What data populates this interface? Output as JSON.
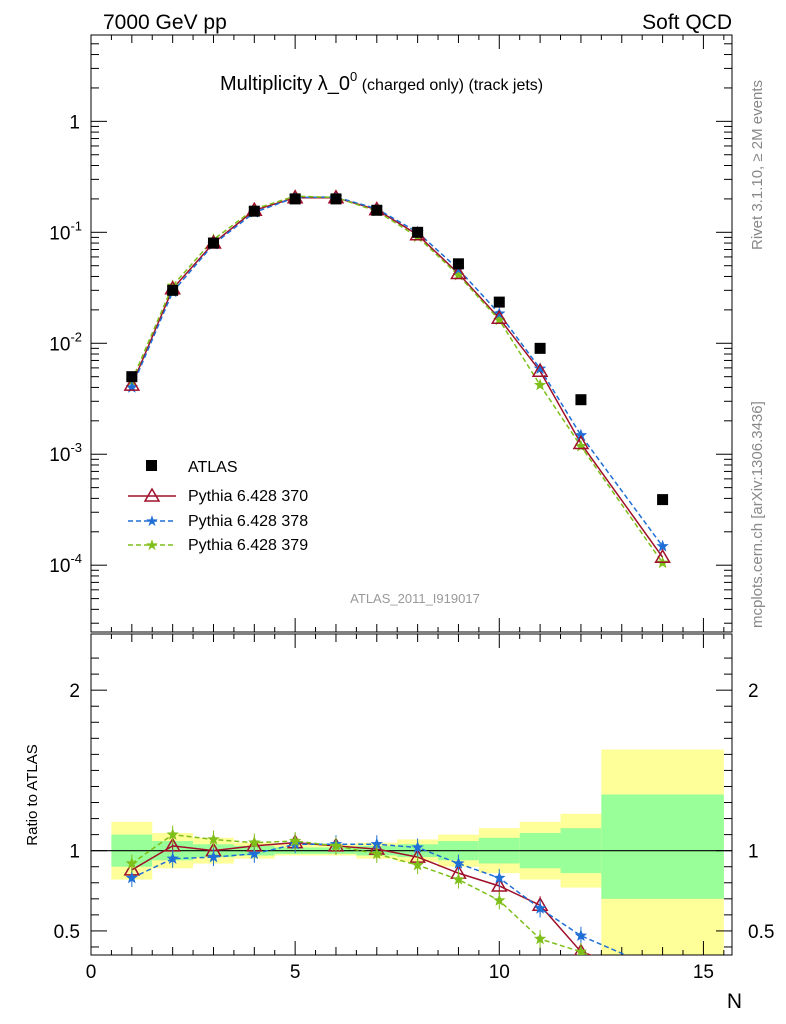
{
  "header": {
    "left": "7000 GeV pp",
    "right": "Soft QCD",
    "title_main": "Multiplicity λ_0",
    "title_sup": "0",
    "title_sub": " (charged only) (track jets)",
    "analysis": "ATLAS_2011_I919017",
    "side_top": "Rivet 3.1.10, ≥ 2M events",
    "side_bottom": "mcplots.cern.ch [arXiv:1306.3436]"
  },
  "colors": {
    "atlas": "#000000",
    "p370": "#a0102a",
    "p378": "#1f6fd6",
    "p379": "#7fbf1a",
    "band_inner": "#99ff99",
    "band_outer": "#ffff99"
  },
  "chart_data": [
    {
      "type": "scatter",
      "panel": "main",
      "yscale": "log",
      "xlim": [
        0,
        15.7
      ],
      "ylim": [
        2.5e-05,
        6
      ],
      "xlabel": "N",
      "ytick_labels": [
        "10^-4",
        "10^-3",
        "10^-2",
        "10^-1",
        "1"
      ],
      "xtick_labels": [
        "0",
        "5",
        "10",
        "15"
      ],
      "legend_position": "lower-left",
      "x": [
        1,
        2,
        3,
        4,
        5,
        6,
        7,
        8,
        9,
        10,
        11,
        12,
        14
      ],
      "series": [
        {
          "name": "ATLAS",
          "marker": "square",
          "values": [
            0.005,
            0.03,
            0.08,
            0.155,
            0.2,
            0.2,
            0.158,
            0.1,
            0.052,
            0.0235,
            0.009,
            0.0031,
            0.00039
          ]
        },
        {
          "name": "Pythia 6.428 370",
          "marker": "open-triangle",
          "line": "solid",
          "values": [
            0.0042,
            0.031,
            0.08,
            0.158,
            0.205,
            0.205,
            0.16,
            0.095,
            0.0425,
            0.0168,
            0.0056,
            0.00125,
            0.000118
          ]
        },
        {
          "name": "Pythia 6.428 378",
          "marker": "star",
          "line": "dashed",
          "values": [
            0.004,
            0.029,
            0.078,
            0.151,
            0.206,
            0.208,
            0.163,
            0.1,
            0.0465,
            0.0185,
            0.0059,
            0.00148,
            0.000148
          ]
        },
        {
          "name": "Pythia 6.428 379",
          "marker": "star",
          "line": "dashed",
          "values": [
            0.0046,
            0.033,
            0.086,
            0.162,
            0.212,
            0.206,
            0.155,
            0.091,
            0.041,
            0.0162,
            0.0042,
            0.00118,
            0.000105
          ]
        }
      ]
    },
    {
      "type": "line",
      "panel": "ratio",
      "ylabel": "Ratio to ATLAS",
      "xlabel": "N",
      "xlim": [
        0,
        15.7
      ],
      "ylim": [
        0.35,
        2.35
      ],
      "ytick_labels": [
        "0.5",
        "1",
        "2"
      ],
      "xtick_labels": [
        "0",
        "5",
        "10",
        "15"
      ],
      "bands": {
        "edges": [
          0.5,
          1.5,
          2.5,
          3.5,
          4.5,
          5.5,
          6.5,
          7.5,
          8.5,
          9.5,
          10.5,
          11.5,
          12.5,
          15.5
        ],
        "inner": [
          [
            0.9,
            1.1
          ],
          [
            0.94,
            1.06
          ],
          [
            0.96,
            1.04
          ],
          [
            0.97,
            1.03
          ],
          [
            0.98,
            1.02
          ],
          [
            0.98,
            1.02
          ],
          [
            0.97,
            1.03
          ],
          [
            0.96,
            1.04
          ],
          [
            0.94,
            1.06
          ],
          [
            0.92,
            1.08
          ],
          [
            0.89,
            1.11
          ],
          [
            0.86,
            1.14
          ],
          [
            0.7,
            1.35
          ]
        ],
        "outer": [
          [
            0.82,
            1.18
          ],
          [
            0.89,
            1.11
          ],
          [
            0.92,
            1.08
          ],
          [
            0.95,
            1.05
          ],
          [
            0.97,
            1.04
          ],
          [
            0.97,
            1.04
          ],
          [
            0.95,
            1.05
          ],
          [
            0.93,
            1.07
          ],
          [
            0.9,
            1.1
          ],
          [
            0.86,
            1.14
          ],
          [
            0.82,
            1.18
          ],
          [
            0.77,
            1.23
          ],
          [
            0.35,
            1.63
          ]
        ]
      },
      "x": [
        1,
        2,
        3,
        4,
        5,
        6,
        7,
        8,
        9,
        10,
        11,
        12,
        14
      ],
      "series": [
        {
          "name": "Pythia 6.428 370",
          "values": [
            0.88,
            1.03,
            1.0,
            1.03,
            1.05,
            1.03,
            1.01,
            0.96,
            0.86,
            0.78,
            0.66,
            0.37,
            0.2
          ]
        },
        {
          "name": "Pythia 6.428 378",
          "values": [
            0.83,
            0.95,
            0.96,
            0.98,
            1.04,
            1.04,
            1.04,
            1.02,
            0.92,
            0.83,
            0.64,
            0.47,
            0.25
          ]
        },
        {
          "name": "Pythia 6.428 379",
          "values": [
            0.92,
            1.1,
            1.07,
            1.05,
            1.06,
            1.03,
            0.98,
            0.91,
            0.82,
            0.69,
            0.45,
            0.37,
            0.16
          ]
        }
      ]
    }
  ]
}
